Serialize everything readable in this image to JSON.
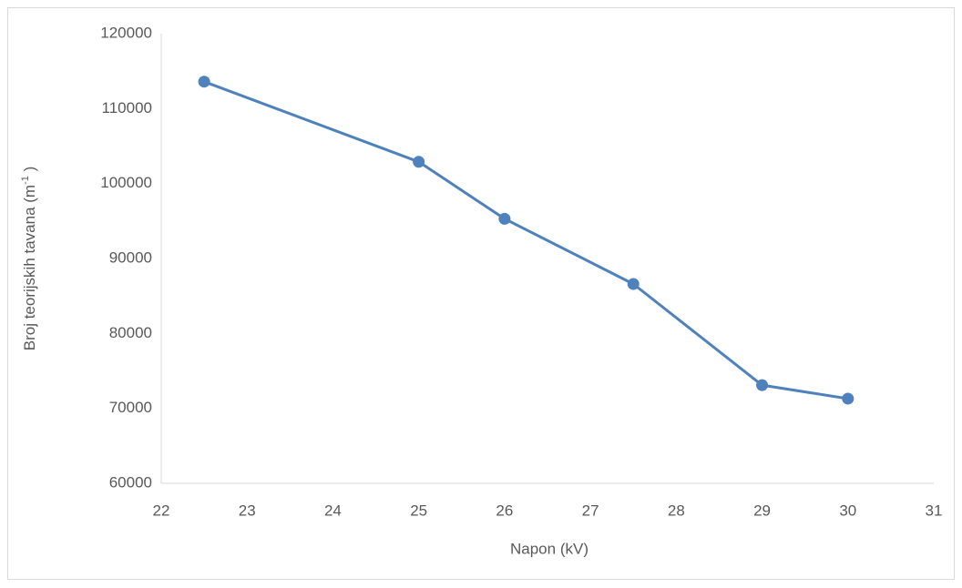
{
  "chart_data": {
    "type": "line",
    "x": [
      22.5,
      25,
      26,
      27.5,
      29,
      30
    ],
    "series": [
      {
        "name": "Broj teorijskih tavana",
        "color": "#4f81bd",
        "values": [
          113600,
          102900,
          95300,
          86600,
          73100,
          71300
        ]
      }
    ],
    "xlabel": "Napon (kV)",
    "ylabel": {
      "text": "Broj teorijskih tavana (m",
      "sup": "-1",
      "after": " )"
    },
    "xlim": [
      22,
      31
    ],
    "xticks": [
      22,
      23,
      24,
      25,
      26,
      27,
      28,
      29,
      30,
      31
    ],
    "ylim": [
      60000,
      120000
    ],
    "yticks": [
      60000,
      70000,
      80000,
      90000,
      100000,
      110000,
      120000
    ],
    "grid": false,
    "markers": true
  }
}
